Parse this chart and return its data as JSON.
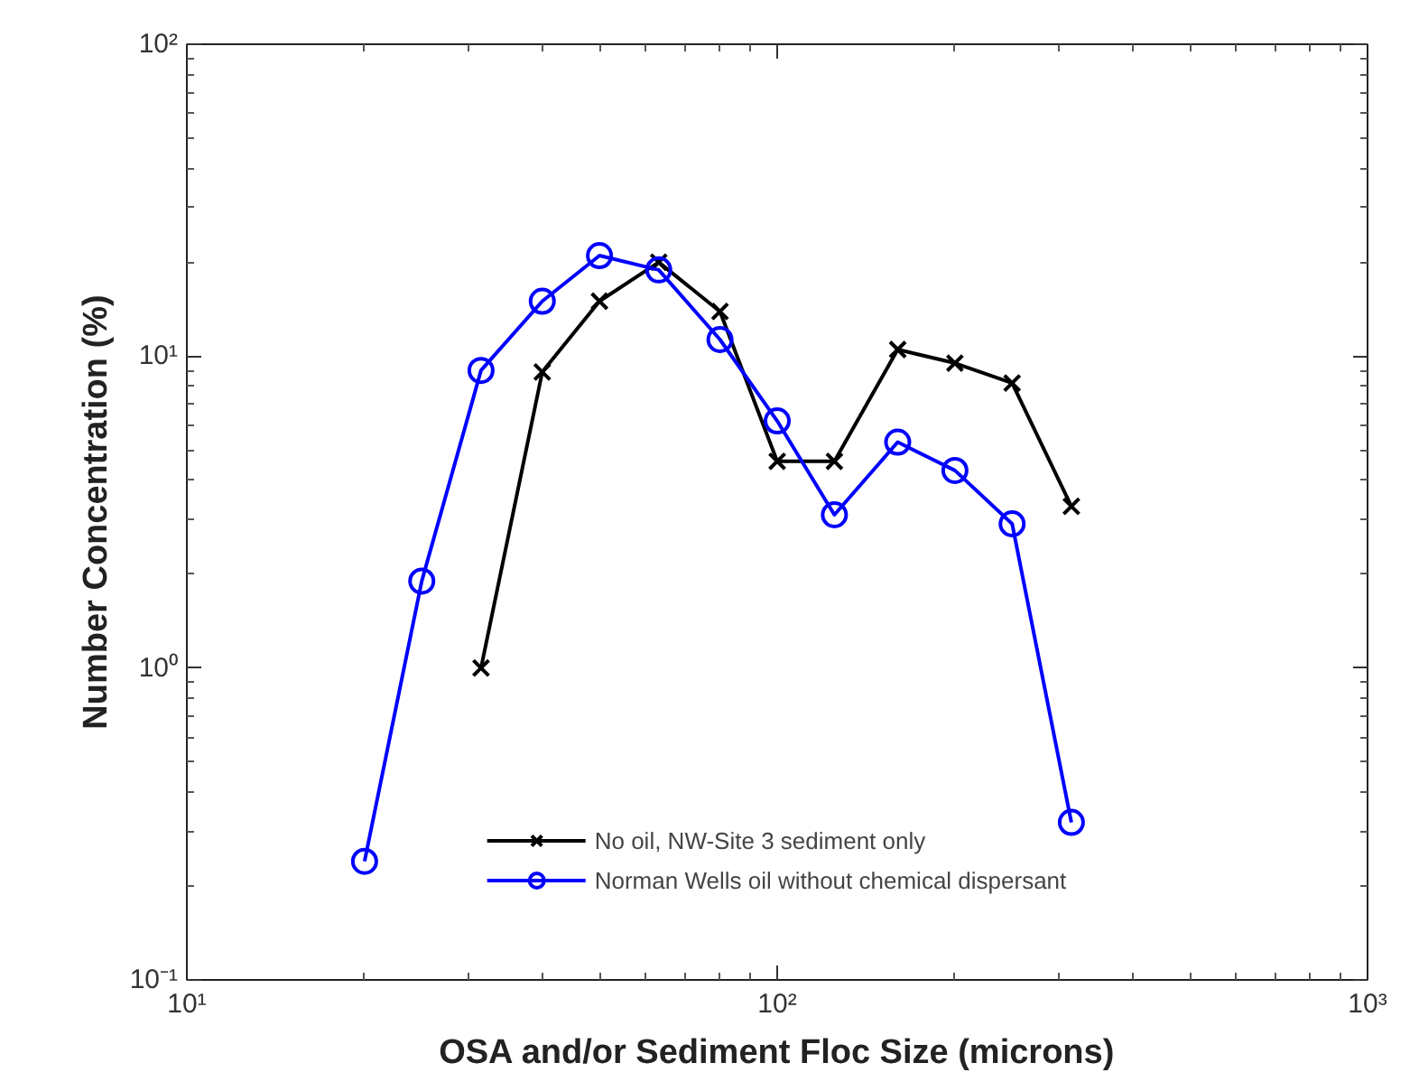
{
  "chart_data": {
    "type": "line",
    "xlabel": "OSA and/or Sediment Floc Size (microns)",
    "ylabel": "Number Concentration (%)",
    "log": "xy",
    "grid": false,
    "legend": "bottom",
    "xlim": [
      10,
      1000
    ],
    "xticks": [
      {
        "value": 10,
        "label": "10¹"
      },
      {
        "value": 100,
        "label": "10²"
      },
      {
        "value": 1000,
        "label": "10³"
      }
    ],
    "ylim": [
      0.1,
      100
    ],
    "yticks": [
      {
        "value": 0.1,
        "label": "10⁻¹"
      },
      {
        "value": 1,
        "label": "10⁰"
      },
      {
        "value": 10,
        "label": "10¹"
      },
      {
        "value": 100,
        "label": "10²"
      }
    ],
    "series": [
      {
        "name": "No oil, NW-Site 3 sediment only",
        "color": "#000000",
        "marker": "cross",
        "x": [
          31.5,
          40,
          50,
          63,
          80,
          100,
          125,
          160,
          200,
          250,
          315
        ],
        "values": [
          1.0,
          8.9,
          15,
          20,
          13.9,
          4.6,
          4.6,
          10.5,
          9.5,
          8.2,
          3.3
        ]
      },
      {
        "name": "Norman Wells oil without chemical dispersant",
        "color": "#0000ff",
        "marker": "circle",
        "x": [
          20,
          25,
          31.5,
          40,
          50,
          63,
          80,
          100,
          125,
          160,
          200,
          250,
          315
        ],
        "values": [
          0.24,
          1.9,
          9.0,
          15,
          21,
          18.9,
          11.3,
          6.2,
          3.1,
          5.3,
          4.3,
          2.9,
          0.32
        ]
      }
    ]
  }
}
